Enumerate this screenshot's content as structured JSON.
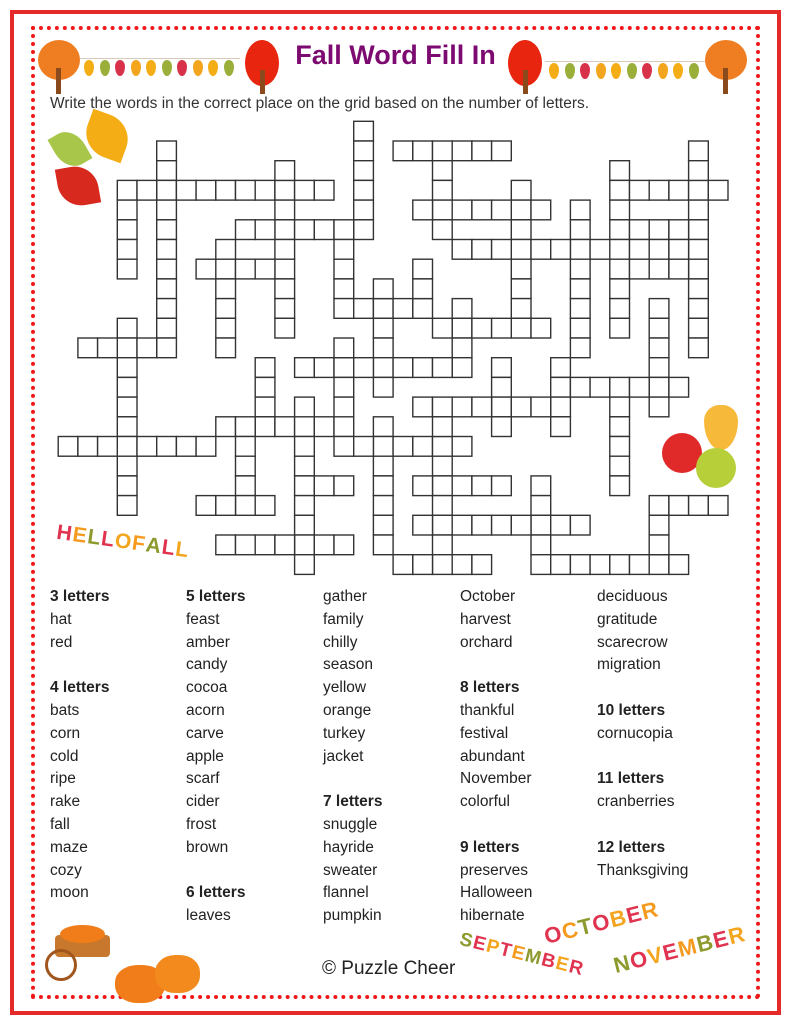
{
  "title": "Fall Word Fill In",
  "instructions": "Write the words in the correct place on the grid based on the number of letters.",
  "colors": {
    "border": "#e52a2a",
    "title": "#7d0a70",
    "grid_line": "#333333"
  },
  "decorations": {
    "hello_fall": "HELLO FALL",
    "months": [
      "OCTOBER",
      "SEPTEMBER",
      "NOVEMBER"
    ],
    "icons": [
      "tree-icon",
      "bunting-icon",
      "maple-leaf-icon",
      "oak-leaf-icon",
      "apple-icon",
      "pear-icon",
      "pumpkin-wagon-icon",
      "pumpkin-icon"
    ]
  },
  "word_bank": [
    [
      "#3 letters",
      "hat",
      "red",
      "",
      "#4 letters",
      "bats",
      "corn",
      "cold",
      "ripe",
      "rake",
      "fall",
      "maze",
      "cozy",
      "moon"
    ],
    [
      "#5 letters",
      "feast",
      "amber",
      "candy",
      "cocoa",
      "acorn",
      "carve",
      "apple",
      "scarf",
      "cider",
      "frost",
      "brown",
      "",
      "#6 letters",
      "leaves"
    ],
    [
      "gather",
      "family",
      "chilly",
      "season",
      "yellow",
      "orange",
      "turkey",
      "jacket",
      "",
      "#7 letters",
      "snuggle",
      "hayride",
      "sweater",
      "flannel",
      "pumpkin"
    ],
    [
      "October",
      "harvest",
      "orchard",
      "",
      "#8 letters",
      "thankful",
      "festival",
      "abundant",
      "November",
      "colorful",
      "",
      "#9 letters",
      "preserves",
      "Halloween",
      "hibernate"
    ],
    [
      "deciduous",
      "gratitude",
      "scarecrow",
      "migration",
      "",
      "#10 letters",
      "cornucopia",
      "",
      "#11 letters",
      "cranberries",
      "",
      "#12 letters",
      "Thanksgiving"
    ]
  ],
  "footer": "© Puzzle Cheer"
}
